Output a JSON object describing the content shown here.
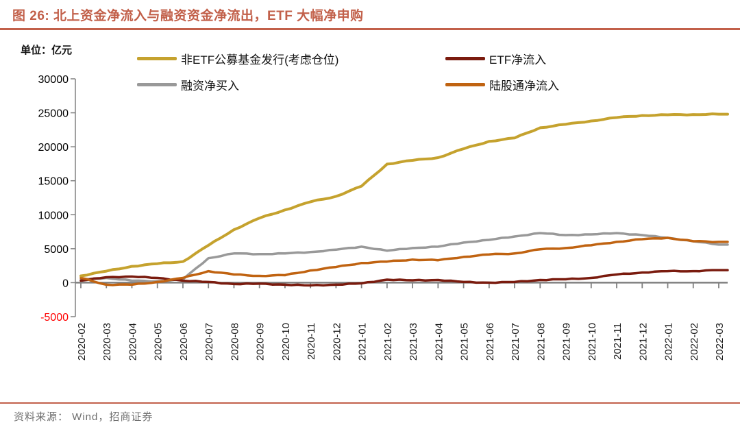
{
  "title": "图 26:  北上资金净流入与融资资金净流出，ETF 大幅净申购",
  "unit_label": "单位：亿元",
  "source_label": "资料来源： Wind，招商证券",
  "colors": {
    "accent": "#C2604A",
    "axis": "#808080",
    "tick_label": "#000000",
    "negative_tick": "#FF0000",
    "source_text": "#6E6E6E"
  },
  "chart_data": {
    "type": "line",
    "title": "北上资金净流入与融资资金净流出，ETF 大幅净申购",
    "unit": "亿元",
    "xlabel": "",
    "ylabel": "亿元",
    "ylim": [
      -5000,
      30000
    ],
    "yticks": [
      30000,
      25000,
      20000,
      15000,
      10000,
      5000,
      0,
      -5000
    ],
    "grid": false,
    "legend_position": "top",
    "categories": [
      "2020-02",
      "2020-03",
      "2020-04",
      "2020-05",
      "2020-06",
      "2020-07",
      "2020-08",
      "2020-09",
      "2020-10",
      "2020-11",
      "2020-12",
      "2021-01",
      "2021-02",
      "2021-03",
      "2021-04",
      "2021-05",
      "2021-06",
      "2021-07",
      "2021-08",
      "2021-09",
      "2021-10",
      "2021-11",
      "2021-12",
      "2022-01",
      "2022-02",
      "2022-03"
    ],
    "series": [
      {
        "name": "非ETF公募基金发行(考虑仓位)",
        "color": "#C5A22E",
        "values": [
          1000,
          1700,
          2400,
          2800,
          3100,
          5500,
          7800,
          9500,
          10700,
          11900,
          12700,
          14200,
          17450,
          18000,
          18400,
          19700,
          20800,
          21300,
          22800,
          23300,
          23800,
          24300,
          24600,
          24700,
          24750,
          24800
        ]
      },
      {
        "name": "ETF净流入",
        "color": "#7A1B0E",
        "values": [
          300,
          800,
          900,
          700,
          300,
          100,
          -200,
          -150,
          -300,
          -400,
          -300,
          -100,
          450,
          350,
          400,
          100,
          0,
          100,
          400,
          500,
          700,
          1200,
          1500,
          1700,
          1700,
          1850
        ]
      },
      {
        "name": "融资净买入",
        "color": "#999999",
        "values": [
          400,
          700,
          300,
          200,
          500,
          3600,
          4300,
          4200,
          4300,
          4500,
          4850,
          5300,
          4700,
          5100,
          5300,
          5900,
          6300,
          6800,
          7300,
          7000,
          7100,
          7300,
          7000,
          6600,
          6100,
          5600
        ]
      },
      {
        "name": "陆股通净流入",
        "color": "#C06311",
        "values": [
          700,
          -300,
          -300,
          100,
          700,
          1700,
          1200,
          1000,
          1100,
          1800,
          2300,
          2900,
          3100,
          3400,
          3300,
          3800,
          4150,
          4300,
          4900,
          5100,
          5500,
          6000,
          6400,
          6600,
          6100,
          6000
        ]
      }
    ]
  },
  "legend_layout": {
    "rows": [
      [
        {
          "series": 0
        },
        {
          "series": 1
        }
      ],
      [
        {
          "series": 2
        },
        {
          "series": 3
        }
      ]
    ]
  }
}
